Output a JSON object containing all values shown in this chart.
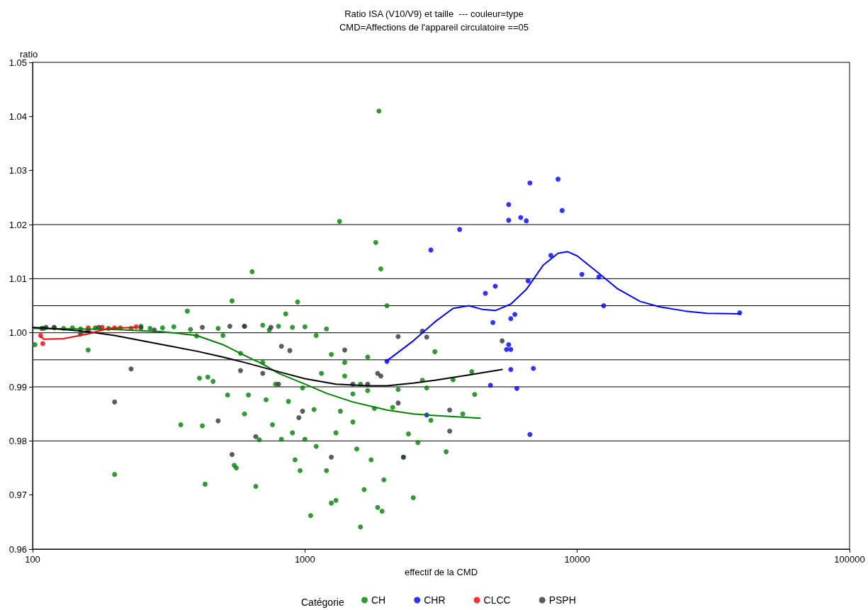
{
  "chart_data": {
    "type": "scatter",
    "title": "Ratio ISA (V10/V9) et taille  --- couleur=type",
    "subtitle": "CMD=Affections de l'appareil circulatoire ==05",
    "xlabel": "effectif de la CMD",
    "ylabel": "ratio",
    "legend_title": "Catégorie",
    "log": "x",
    "xlim": [
      100,
      100000
    ],
    "xticks": [
      100,
      1000,
      10000,
      100000
    ],
    "ylim": [
      0.96,
      1.05
    ],
    "yticks": [
      0.96,
      0.97,
      0.98,
      0.99,
      {
        "value": 1,
        "label": "1.00"
      },
      1.01,
      1.02,
      1.03,
      1.04,
      1.05
    ],
    "grid": false,
    "legend": "bottom",
    "marker": "circle",
    "ref_lines": [
      {
        "axis": "y",
        "value": 1.02,
        "color": "#000000"
      },
      {
        "axis": "y",
        "value": 1.01,
        "color": "#000000"
      },
      {
        "axis": "y",
        "value": 1.005,
        "color": "#000000"
      },
      {
        "axis": "y",
        "value": 1.0,
        "color": "#000000"
      },
      {
        "axis": "y",
        "value": 0.995,
        "color": "#000000"
      },
      {
        "axis": "y",
        "value": 0.99,
        "color": "#000000"
      },
      {
        "axis": "y",
        "value": 0.98,
        "color": "#000000"
      }
    ],
    "series": [
      {
        "name": "CH",
        "color": "#008000",
        "x": [
          102,
          110,
          120,
          130,
          140,
          150,
          160,
          170,
          190,
          200,
          210,
          230,
          250,
          270,
          300,
          330,
          350,
          370,
          380,
          400,
          410,
          420,
          430,
          440,
          460,
          480,
          500,
          520,
          540,
          550,
          560,
          580,
          600,
          620,
          640,
          660,
          680,
          700,
          720,
          740,
          760,
          780,
          800,
          820,
          850,
          870,
          900,
          920,
          940,
          960,
          980,
          1000,
          1050,
          1080,
          1100,
          1150,
          1200,
          1250,
          1300,
          1340,
          1350,
          1400,
          1500,
          1550,
          1600,
          1650,
          1700,
          1750,
          1820,
          1850,
          1870,
          1900,
          1920,
          1950,
          2000,
          2100,
          2200,
          2300,
          2400,
          2500,
          2600,
          2700,
          2800,
          2900,
          3000,
          3300,
          3500,
          3800,
          4100,
          4200,
          1200,
          1000,
          900,
          700,
          600,
          1100,
          1250,
          1700,
          1400,
          1600,
          1800,
          1500,
          1300
        ],
        "values": [
          0.9978,
          1.0008,
          1.0009,
          1.0008,
          1.0009,
          1.0007,
          0.9968,
          1.0009,
          1.0008,
          0.9738,
          1.0009,
          1.0008,
          1.0012,
          1.0008,
          1.0009,
          1.0011,
          0.983,
          1.004,
          1.0006,
          0.9994,
          0.9916,
          0.9828,
          0.972,
          0.9918,
          0.991,
          1.0008,
          0.9995,
          0.9885,
          1.0059,
          0.9755,
          0.975,
          0.9962,
          0.985,
          0.9885,
          1.0113,
          0.9716,
          0.9802,
          0.9945,
          0.9876,
          1.0005,
          0.983,
          0.9905,
          1.0012,
          0.9803,
          1.0035,
          0.9873,
          0.9815,
          0.9765,
          1.0057,
          0.9745,
          0.9898,
          0.9803,
          0.9662,
          0.9858,
          0.979,
          0.9925,
          0.9745,
          0.9685,
          0.969,
          1.0206,
          0.9855,
          0.9945,
          0.9887,
          0.9785,
          0.9641,
          0.971,
          0.9893,
          0.9765,
          1.0167,
          0.9677,
          1.041,
          1.0118,
          0.967,
          0.9728,
          1.005,
          0.9862,
          0.9895,
          0.977,
          0.9813,
          0.9695,
          0.9797,
          0.9912,
          0.9898,
          0.9838,
          0.9965,
          0.978,
          0.9913,
          0.985,
          0.9928,
          0.9886,
          1.0007,
          1.0011,
          1.001,
          1.0014,
          1.0012,
          0.9995,
          0.996,
          0.9955,
          0.992,
          0.9905,
          0.986,
          0.9835,
          0.9815
        ]
      },
      {
        "name": "CHR",
        "color": "#0000ff",
        "x": [
          2000,
          2800,
          2900,
          3700,
          4600,
          4800,
          4900,
          5000,
          5500,
          5600,
          5600,
          5600,
          5700,
          5700,
          5700,
          5900,
          6000,
          6200,
          6500,
          6600,
          6700,
          6700,
          6900,
          8000,
          8500,
          8800,
          10400,
          12000,
          12500,
          39500
        ],
        "values": [
          0.9947,
          0.9848,
          1.0153,
          1.0191,
          1.0073,
          0.9903,
          1.0019,
          1.0086,
          0.9969,
          0.9978,
          1.0208,
          1.0237,
          0.9932,
          0.9969,
          1.0026,
          1.0034,
          0.9897,
          1.0213,
          1.0207,
          1.0096,
          1.0277,
          0.9812,
          0.9934,
          1.0143,
          1.0284,
          1.0226,
          1.0108,
          1.0103,
          1.005,
          1.0037
        ]
      },
      {
        "name": "CLCC",
        "color": "#ff0000",
        "x": [
          107,
          109,
          160,
          180,
          200,
          240
        ],
        "values": [
          0.9995,
          0.998,
          1.0009,
          1.001,
          1.0009,
          1.0011
        ]
      },
      {
        "name": "PSPH",
        "color": "#333333",
        "x": [
          108,
          112,
          120,
          150,
          160,
          175,
          200,
          230,
          250,
          280,
          420,
          480,
          530,
          540,
          580,
          600,
          660,
          700,
          750,
          820,
          880,
          800,
          950,
          980,
          1250,
          1400,
          1500,
          1700,
          1850,
          1900,
          2200,
          2200,
          2300,
          2700,
          2800,
          3400,
          3400,
          5300
        ],
        "values": [
          1.0008,
          1.001,
          1.001,
          0.9998,
          1.0004,
          1.001,
          0.9872,
          0.9933,
          1.0009,
          1.0005,
          1.001,
          0.9837,
          1.0012,
          0.9775,
          0.993,
          1.0012,
          0.9808,
          0.9925,
          1.001,
          0.9975,
          0.9967,
          0.9905,
          0.9843,
          0.9855,
          0.977,
          0.9968,
          0.9905,
          0.9905,
          0.9925,
          0.992,
          0.9993,
          0.987,
          0.977,
          1.0003,
          0.9992,
          0.9818,
          0.9857,
          0.9985
        ]
      },
      {
        "type": "line",
        "marker": "none",
        "color": "#008000",
        "x": [
          100,
          200,
          300,
          400,
          500,
          600,
          700,
          800,
          1000,
          1200,
          1500,
          2000,
          2500,
          3000,
          3500,
          4400
        ],
        "values": [
          1.0008,
          1.0006,
          1.0002,
          0.9995,
          0.9978,
          0.9958,
          0.9942,
          0.9925,
          0.9905,
          0.9888,
          0.9872,
          0.9857,
          0.985,
          0.9847,
          0.9845,
          0.9842
        ]
      },
      {
        "type": "line",
        "marker": "none",
        "color": "#000000",
        "x": [
          100,
          130,
          160,
          200,
          300,
          400,
          500,
          600,
          800,
          1000,
          1300,
          1700,
          2000,
          2500,
          3000,
          4000,
          5300
        ],
        "values": [
          1.001,
          1.0006,
          1.0002,
          0.9995,
          0.9978,
          0.9966,
          0.9955,
          0.9945,
          0.9928,
          0.9915,
          0.9905,
          0.9902,
          0.9902,
          0.9907,
          0.9912,
          0.9922,
          0.9932
        ]
      },
      {
        "type": "line",
        "marker": "none",
        "color": "#ff0000",
        "x": [
          107,
          110,
          130,
          160,
          190,
          240
        ],
        "values": [
          0.9993,
          0.9988,
          0.9989,
          0.9998,
          1.0008,
          1.001
        ]
      },
      {
        "type": "line",
        "marker": "none",
        "color": "#0000ff",
        "x": [
          2000,
          2500,
          3000,
          3500,
          4000,
          4500,
          5000,
          5700,
          6500,
          7500,
          8500,
          9200,
          10000,
          12000,
          14000,
          17000,
          20000,
          25000,
          30000,
          39500
        ],
        "values": [
          0.9948,
          0.9985,
          1.002,
          1.0045,
          1.005,
          1.0043,
          1.0041,
          1.0053,
          1.008,
          1.0125,
          1.0147,
          1.015,
          1.0142,
          1.011,
          1.0082,
          1.0058,
          1.0048,
          1.004,
          1.0036,
          1.0035
        ]
      }
    ]
  }
}
